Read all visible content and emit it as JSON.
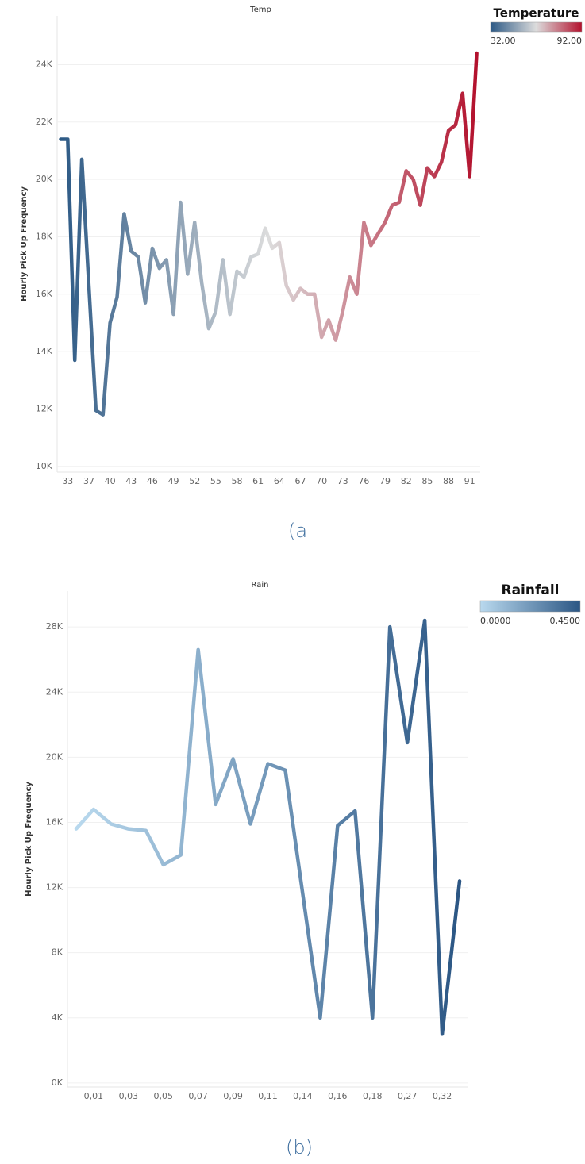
{
  "chart_data": [
    {
      "type": "line",
      "title": "Temp",
      "y_label": "Hourly Pick Up Frequency",
      "caption": "(a",
      "categories": [
        null,
        "33",
        null,
        null,
        "37",
        null,
        null,
        "40",
        null,
        null,
        "43",
        null,
        null,
        "46",
        null,
        null,
        "49",
        null,
        null,
        "52",
        null,
        null,
        "55",
        null,
        null,
        "58",
        null,
        null,
        "61",
        null,
        null,
        "64",
        null,
        null,
        "67",
        null,
        null,
        "70",
        null,
        null,
        "73",
        null,
        null,
        "76",
        null,
        null,
        "79",
        null,
        null,
        "82",
        null,
        null,
        "85",
        null,
        null,
        "88",
        null,
        null,
        "91",
        null
      ],
      "values": [
        21400,
        21400,
        13700,
        20700,
        16300,
        11950,
        11800,
        15000,
        15900,
        18800,
        17500,
        17300,
        15700,
        17600,
        16900,
        17200,
        15300,
        19200,
        16700,
        18500,
        16400,
        14800,
        15400,
        17200,
        15300,
        16800,
        16600,
        17300,
        17400,
        18300,
        17600,
        17800,
        16300,
        15800,
        16200,
        16000,
        16000,
        14500,
        15100,
        14400,
        15400,
        16600,
        16000,
        18500,
        17700,
        18100,
        18500,
        19100,
        19200,
        20300,
        20000,
        19100,
        20400,
        20100,
        20600,
        21700,
        21900,
        23000,
        20100,
        24400
      ],
      "ylim": [
        9800,
        25700
      ],
      "yticks": [
        {
          "value": 10000,
          "label": "10K"
        },
        {
          "value": 12000,
          "label": "12K"
        },
        {
          "value": 14000,
          "label": "14K"
        },
        {
          "value": 16000,
          "label": "16K"
        },
        {
          "value": 18000,
          "label": "18K"
        },
        {
          "value": 20000,
          "label": "20K"
        },
        {
          "value": 22000,
          "label": "22K"
        },
        {
          "value": 24000,
          "label": "24K"
        }
      ],
      "grid": true,
      "legend_title": "Temperature",
      "color_domain": [
        {
          "value": 32,
          "label": "32,00"
        },
        {
          "value": 92,
          "label": "92,00"
        }
      ],
      "color_range": [
        "#2c5985",
        "#dcdcdc",
        "#b3112d"
      ]
    },
    {
      "type": "line",
      "title": "Rain",
      "y_label": "Hourly Pick Up Frequency",
      "caption": "(b)",
      "categories": [
        null,
        "0,01",
        null,
        "0,03",
        null,
        "0,05",
        null,
        "0,07",
        null,
        "0,09",
        null,
        "0,11",
        null,
        "0,14",
        null,
        "0,16",
        null,
        "0,18",
        null,
        "0,27",
        null,
        "0,32",
        null
      ],
      "values": [
        15600,
        16800,
        15900,
        15600,
        15500,
        13400,
        14000,
        26600,
        17100,
        19900,
        15900,
        19600,
        19200,
        11600,
        4000,
        15800,
        16700,
        4000,
        28000,
        20900,
        28400,
        3000,
        12400
      ],
      "ylim": [
        -250,
        30200
      ],
      "yticks": [
        {
          "value": 0,
          "label": "0K"
        },
        {
          "value": 4000,
          "label": "4K"
        },
        {
          "value": 8000,
          "label": "8K"
        },
        {
          "value": 12000,
          "label": "12K"
        },
        {
          "value": 16000,
          "label": "16K"
        },
        {
          "value": 20000,
          "label": "20K"
        },
        {
          "value": 24000,
          "label": "24K"
        },
        {
          "value": 28000,
          "label": "28K"
        }
      ],
      "grid": true,
      "legend_title": "Rainfall",
      "color_domain": [
        {
          "value": 0,
          "label": "0,0000"
        },
        {
          "value": 0.45,
          "label": "0,4500"
        }
      ],
      "color_range": [
        "#b9d9ee",
        "#2b5684"
      ]
    }
  ]
}
